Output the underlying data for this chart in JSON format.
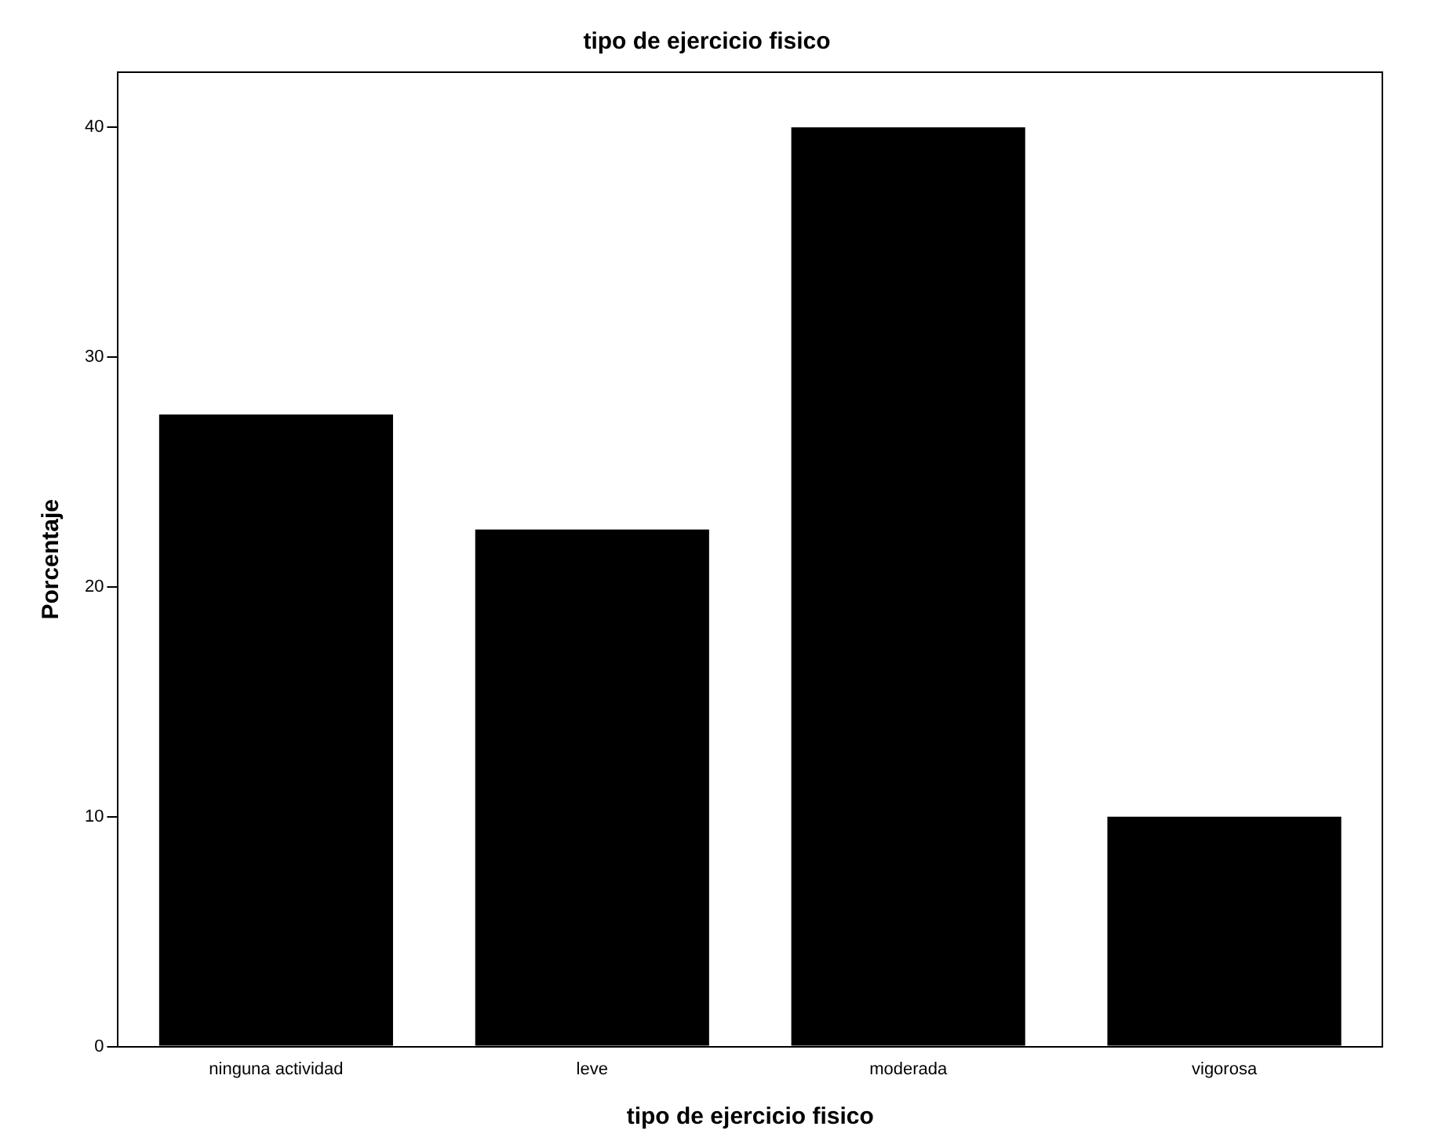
{
  "chart_data": {
    "type": "bar",
    "title": "tipo de ejercicio fisico",
    "xlabel": "tipo de ejercicio fisico",
    "ylabel": "Porcentaje",
    "categories": [
      "ninguna actividad",
      "leve",
      "moderada",
      "vigorosa"
    ],
    "values": [
      27.5,
      22.5,
      40,
      10
    ],
    "color": "#000000",
    "ylim": [
      0,
      42.4
    ],
    "yticks": [
      0,
      10,
      20,
      30,
      40
    ],
    "grid": false,
    "legend": false
  }
}
